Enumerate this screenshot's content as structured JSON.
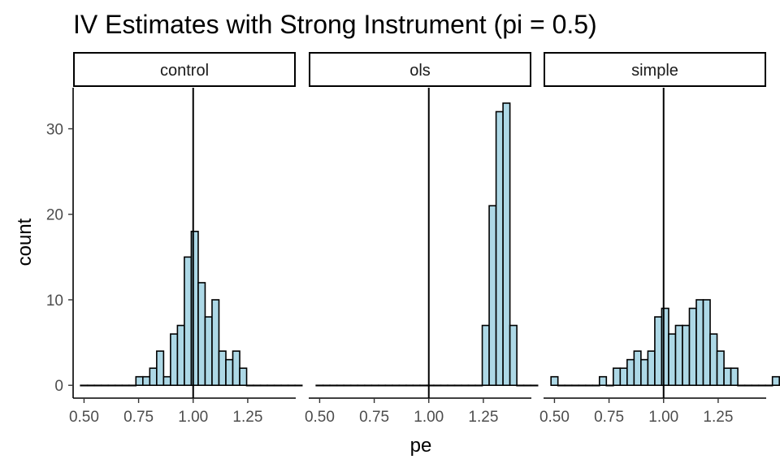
{
  "chart_data": {
    "type": "bar",
    "title": "IV Estimates with Strong Instrument (pi = 0.5)",
    "xlabel": "pe",
    "ylabel": "count",
    "xlim": [
      0.45,
      1.47
    ],
    "ylim": [
      -1.5,
      34.8
    ],
    "x_ticks": [
      0.5,
      0.75,
      1.0,
      1.25
    ],
    "x_tick_labels": [
      "0.50",
      "0.75",
      "1.00",
      "1.25"
    ],
    "y_ticks": [
      0,
      10,
      20,
      30
    ],
    "y_tick_labels": [
      "0",
      "10",
      "20",
      "30"
    ],
    "grid": false,
    "fill_color": "#add8e6",
    "edge_color": "#000000",
    "vline_x": 1.0,
    "bin_start": 0.5,
    "bin_width": 0.0317,
    "facets": [
      {
        "name": "control",
        "counts": [
          0,
          0,
          0,
          0,
          0,
          0,
          0,
          0,
          1,
          1,
          2,
          4,
          1,
          6,
          7,
          15,
          18,
          12,
          8,
          10,
          4,
          3,
          4,
          2,
          0,
          0,
          0,
          0,
          0,
          0,
          0,
          0
        ]
      },
      {
        "name": "ols",
        "counts": [
          0,
          0,
          0,
          0,
          0,
          0,
          0,
          0,
          0,
          0,
          0,
          0,
          0,
          0,
          0,
          0,
          0,
          0,
          0,
          0,
          0,
          0,
          0,
          0,
          7,
          21,
          32,
          33,
          7,
          0,
          0,
          0
        ]
      },
      {
        "name": "simple",
        "counts": [
          1,
          0,
          0,
          0,
          0,
          0,
          0,
          1,
          0,
          2,
          2,
          3,
          4,
          3,
          4,
          8,
          9,
          6,
          7,
          7,
          9,
          10,
          10,
          6,
          4,
          2,
          2,
          0,
          0,
          0,
          0,
          0,
          1
        ]
      }
    ]
  }
}
